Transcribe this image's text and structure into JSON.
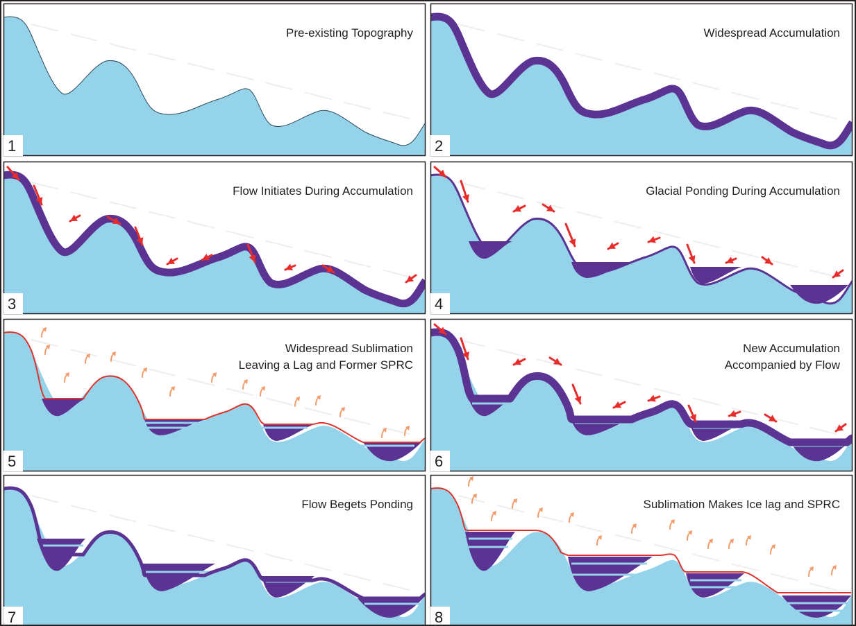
{
  "panels": [
    {
      "number": "1",
      "title_lines": [
        "Pre-existing Topography"
      ]
    },
    {
      "number": "2",
      "title_lines": [
        "Widespread Accumulation"
      ]
    },
    {
      "number": "3",
      "title_lines": [
        "Flow Initiates During Accumulation"
      ]
    },
    {
      "number": "4",
      "title_lines": [
        "Glacial Ponding During Accumulation"
      ]
    },
    {
      "number": "5",
      "title_lines": [
        "Widespread Sublimation",
        "Leaving a Lag and Former SPRC"
      ]
    },
    {
      "number": "6",
      "title_lines": [
        "New Accumulation",
        "Accompanied by Flow"
      ]
    },
    {
      "number": "7",
      "title_lines": [
        "Flow Begets Ponding"
      ]
    },
    {
      "number": "8",
      "title_lines": [
        "Sublimation Makes Ice lag and SPRC"
      ]
    }
  ],
  "colors": {
    "terrain": "#94d3ea",
    "ice": "#5b3393",
    "flow_arrow": "#e82c2c",
    "sublimation_arrow": "#f39a6a",
    "lag_line": "#e0332c",
    "border": "#231f20"
  }
}
